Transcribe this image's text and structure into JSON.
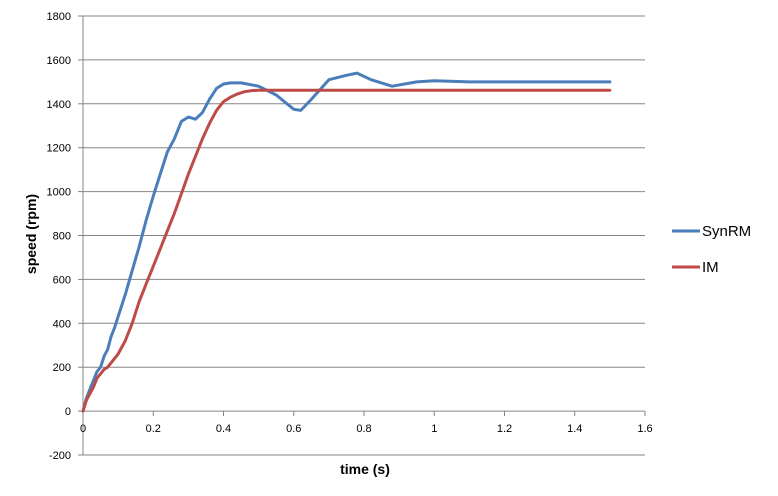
{
  "chart_data": {
    "type": "line",
    "title": "",
    "xlabel": "time (s)",
    "ylabel": "speed (rpm)",
    "xlim": [
      0,
      1.6
    ],
    "ylim": [
      -200,
      1800
    ],
    "x_ticks": [
      0,
      0.2,
      0.4,
      0.6,
      0.8,
      1,
      1.2,
      1.4,
      1.6
    ],
    "x_tick_labels": [
      "0",
      "0.2",
      "0.4",
      "0.6",
      "0.8",
      "1",
      "1.2",
      "1.4",
      "1.6"
    ],
    "y_ticks": [
      -200,
      0,
      200,
      400,
      600,
      800,
      1000,
      1200,
      1400,
      1600,
      1800
    ],
    "y_tick_labels": [
      "-200",
      "0",
      "200",
      "400",
      "600",
      "800",
      "1000",
      "1200",
      "1400",
      "1600",
      "1800"
    ],
    "grid": "horizontal",
    "legend_position": "right",
    "series": [
      {
        "name": "SynRM",
        "color": "#4a7ebb",
        "x": [
          0,
          0.01,
          0.02,
          0.03,
          0.04,
          0.05,
          0.06,
          0.07,
          0.08,
          0.09,
          0.1,
          0.12,
          0.14,
          0.16,
          0.18,
          0.2,
          0.22,
          0.24,
          0.26,
          0.28,
          0.3,
          0.32,
          0.34,
          0.36,
          0.38,
          0.4,
          0.42,
          0.45,
          0.5,
          0.55,
          0.6,
          0.62,
          0.65,
          0.7,
          0.75,
          0.78,
          0.82,
          0.88,
          0.95,
          1.0,
          1.1,
          1.2,
          1.3,
          1.4,
          1.5
        ],
        "y": [
          0,
          60,
          100,
          140,
          180,
          200,
          250,
          280,
          340,
          380,
          430,
          530,
          640,
          750,
          870,
          980,
          1080,
          1180,
          1240,
          1320,
          1340,
          1330,
          1360,
          1420,
          1470,
          1490,
          1495,
          1495,
          1480,
          1440,
          1375,
          1370,
          1420,
          1510,
          1530,
          1540,
          1510,
          1480,
          1500,
          1505,
          1500,
          1500,
          1500,
          1500,
          1500
        ]
      },
      {
        "name": "IM",
        "color": "#be4b48",
        "x": [
          0,
          0.01,
          0.02,
          0.03,
          0.04,
          0.05,
          0.06,
          0.07,
          0.08,
          0.09,
          0.1,
          0.12,
          0.14,
          0.16,
          0.18,
          0.2,
          0.22,
          0.24,
          0.26,
          0.28,
          0.3,
          0.32,
          0.34,
          0.36,
          0.38,
          0.4,
          0.42,
          0.44,
          0.46,
          0.48,
          0.5,
          0.55,
          0.6,
          0.8,
          1.0,
          1.2,
          1.4,
          1.5
        ],
        "y": [
          0,
          50,
          80,
          110,
          150,
          170,
          190,
          200,
          220,
          240,
          260,
          320,
          400,
          500,
          580,
          660,
          740,
          820,
          900,
          990,
          1080,
          1160,
          1240,
          1310,
          1370,
          1410,
          1430,
          1445,
          1455,
          1460,
          1462,
          1462,
          1462,
          1462,
          1462,
          1462,
          1462,
          1462
        ]
      }
    ]
  }
}
